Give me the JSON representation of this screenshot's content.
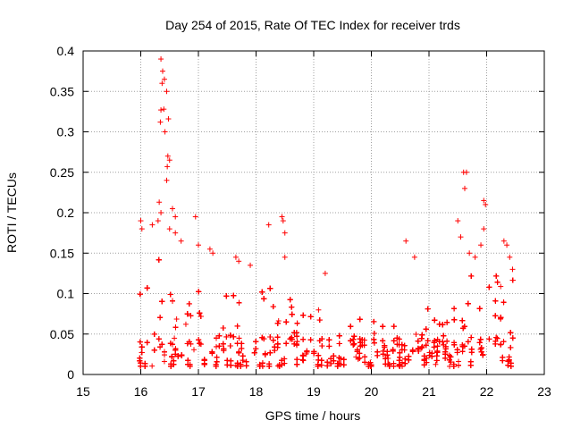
{
  "chart_data": {
    "type": "scatter",
    "title": "Day 254 of 2015, Rate Of TEC Index for receiver trds",
    "xlabel": "GPS time / hours",
    "ylabel": "ROTI / TECUs",
    "xlim": [
      15,
      23
    ],
    "ylim": [
      0,
      0.4
    ],
    "xticks": [
      15,
      16,
      17,
      18,
      19,
      20,
      21,
      22,
      23
    ],
    "yticks": [
      0,
      0.05,
      0.1,
      0.15,
      0.2,
      0.25,
      0.3,
      0.35,
      0.4
    ],
    "ytick_labels": [
      "0",
      "0.05",
      "0.1",
      "0.15",
      "0.2",
      "0.25",
      "0.3",
      "0.35",
      "0.4"
    ],
    "grid": true,
    "marker": "+",
    "color": "#ff0000",
    "series": [
      {
        "name": "ROTI",
        "x_range": [
          15.95,
          22.5
        ],
        "highlight_points": [
          [
            16.35,
            0.39
          ],
          [
            16.38,
            0.375
          ],
          [
            16.41,
            0.365
          ],
          [
            16.37,
            0.36
          ],
          [
            16.45,
            0.35
          ],
          [
            16.4,
            0.328
          ],
          [
            16.35,
            0.327
          ],
          [
            16.48,
            0.316
          ],
          [
            16.34,
            0.312
          ],
          [
            16.42,
            0.3
          ],
          [
            16.47,
            0.27
          ],
          [
            16.5,
            0.265
          ],
          [
            16.46,
            0.257
          ],
          [
            16.45,
            0.24
          ],
          [
            16.32,
            0.213
          ],
          [
            16.35,
            0.2
          ],
          [
            16.55,
            0.205
          ],
          [
            16.6,
            0.195
          ],
          [
            16.2,
            0.185
          ],
          [
            16.0,
            0.19
          ],
          [
            16.02,
            0.18
          ],
          [
            16.3,
            0.19
          ],
          [
            16.5,
            0.18
          ],
          [
            16.6,
            0.175
          ],
          [
            16.7,
            0.165
          ],
          [
            16.95,
            0.195
          ],
          [
            17.0,
            0.16
          ],
          [
            17.2,
            0.155
          ],
          [
            17.25,
            0.15
          ],
          [
            17.7,
            0.14
          ],
          [
            17.65,
            0.145
          ],
          [
            17.9,
            0.135
          ],
          [
            18.22,
            0.185
          ],
          [
            18.45,
            0.195
          ],
          [
            18.47,
            0.19
          ],
          [
            18.5,
            0.175
          ],
          [
            18.5,
            0.145
          ],
          [
            19.2,
            0.125
          ],
          [
            20.6,
            0.165
          ],
          [
            20.75,
            0.145
          ],
          [
            21.6,
            0.25
          ],
          [
            21.65,
            0.25
          ],
          [
            21.62,
            0.23
          ],
          [
            21.5,
            0.19
          ],
          [
            21.55,
            0.17
          ],
          [
            21.7,
            0.15
          ],
          [
            21.8,
            0.145
          ],
          [
            21.95,
            0.215
          ],
          [
            21.98,
            0.21
          ],
          [
            21.95,
            0.18
          ],
          [
            21.9,
            0.16
          ],
          [
            22.3,
            0.165
          ],
          [
            22.35,
            0.16
          ],
          [
            22.4,
            0.145
          ],
          [
            22.45,
            0.13
          ]
        ]
      }
    ]
  }
}
